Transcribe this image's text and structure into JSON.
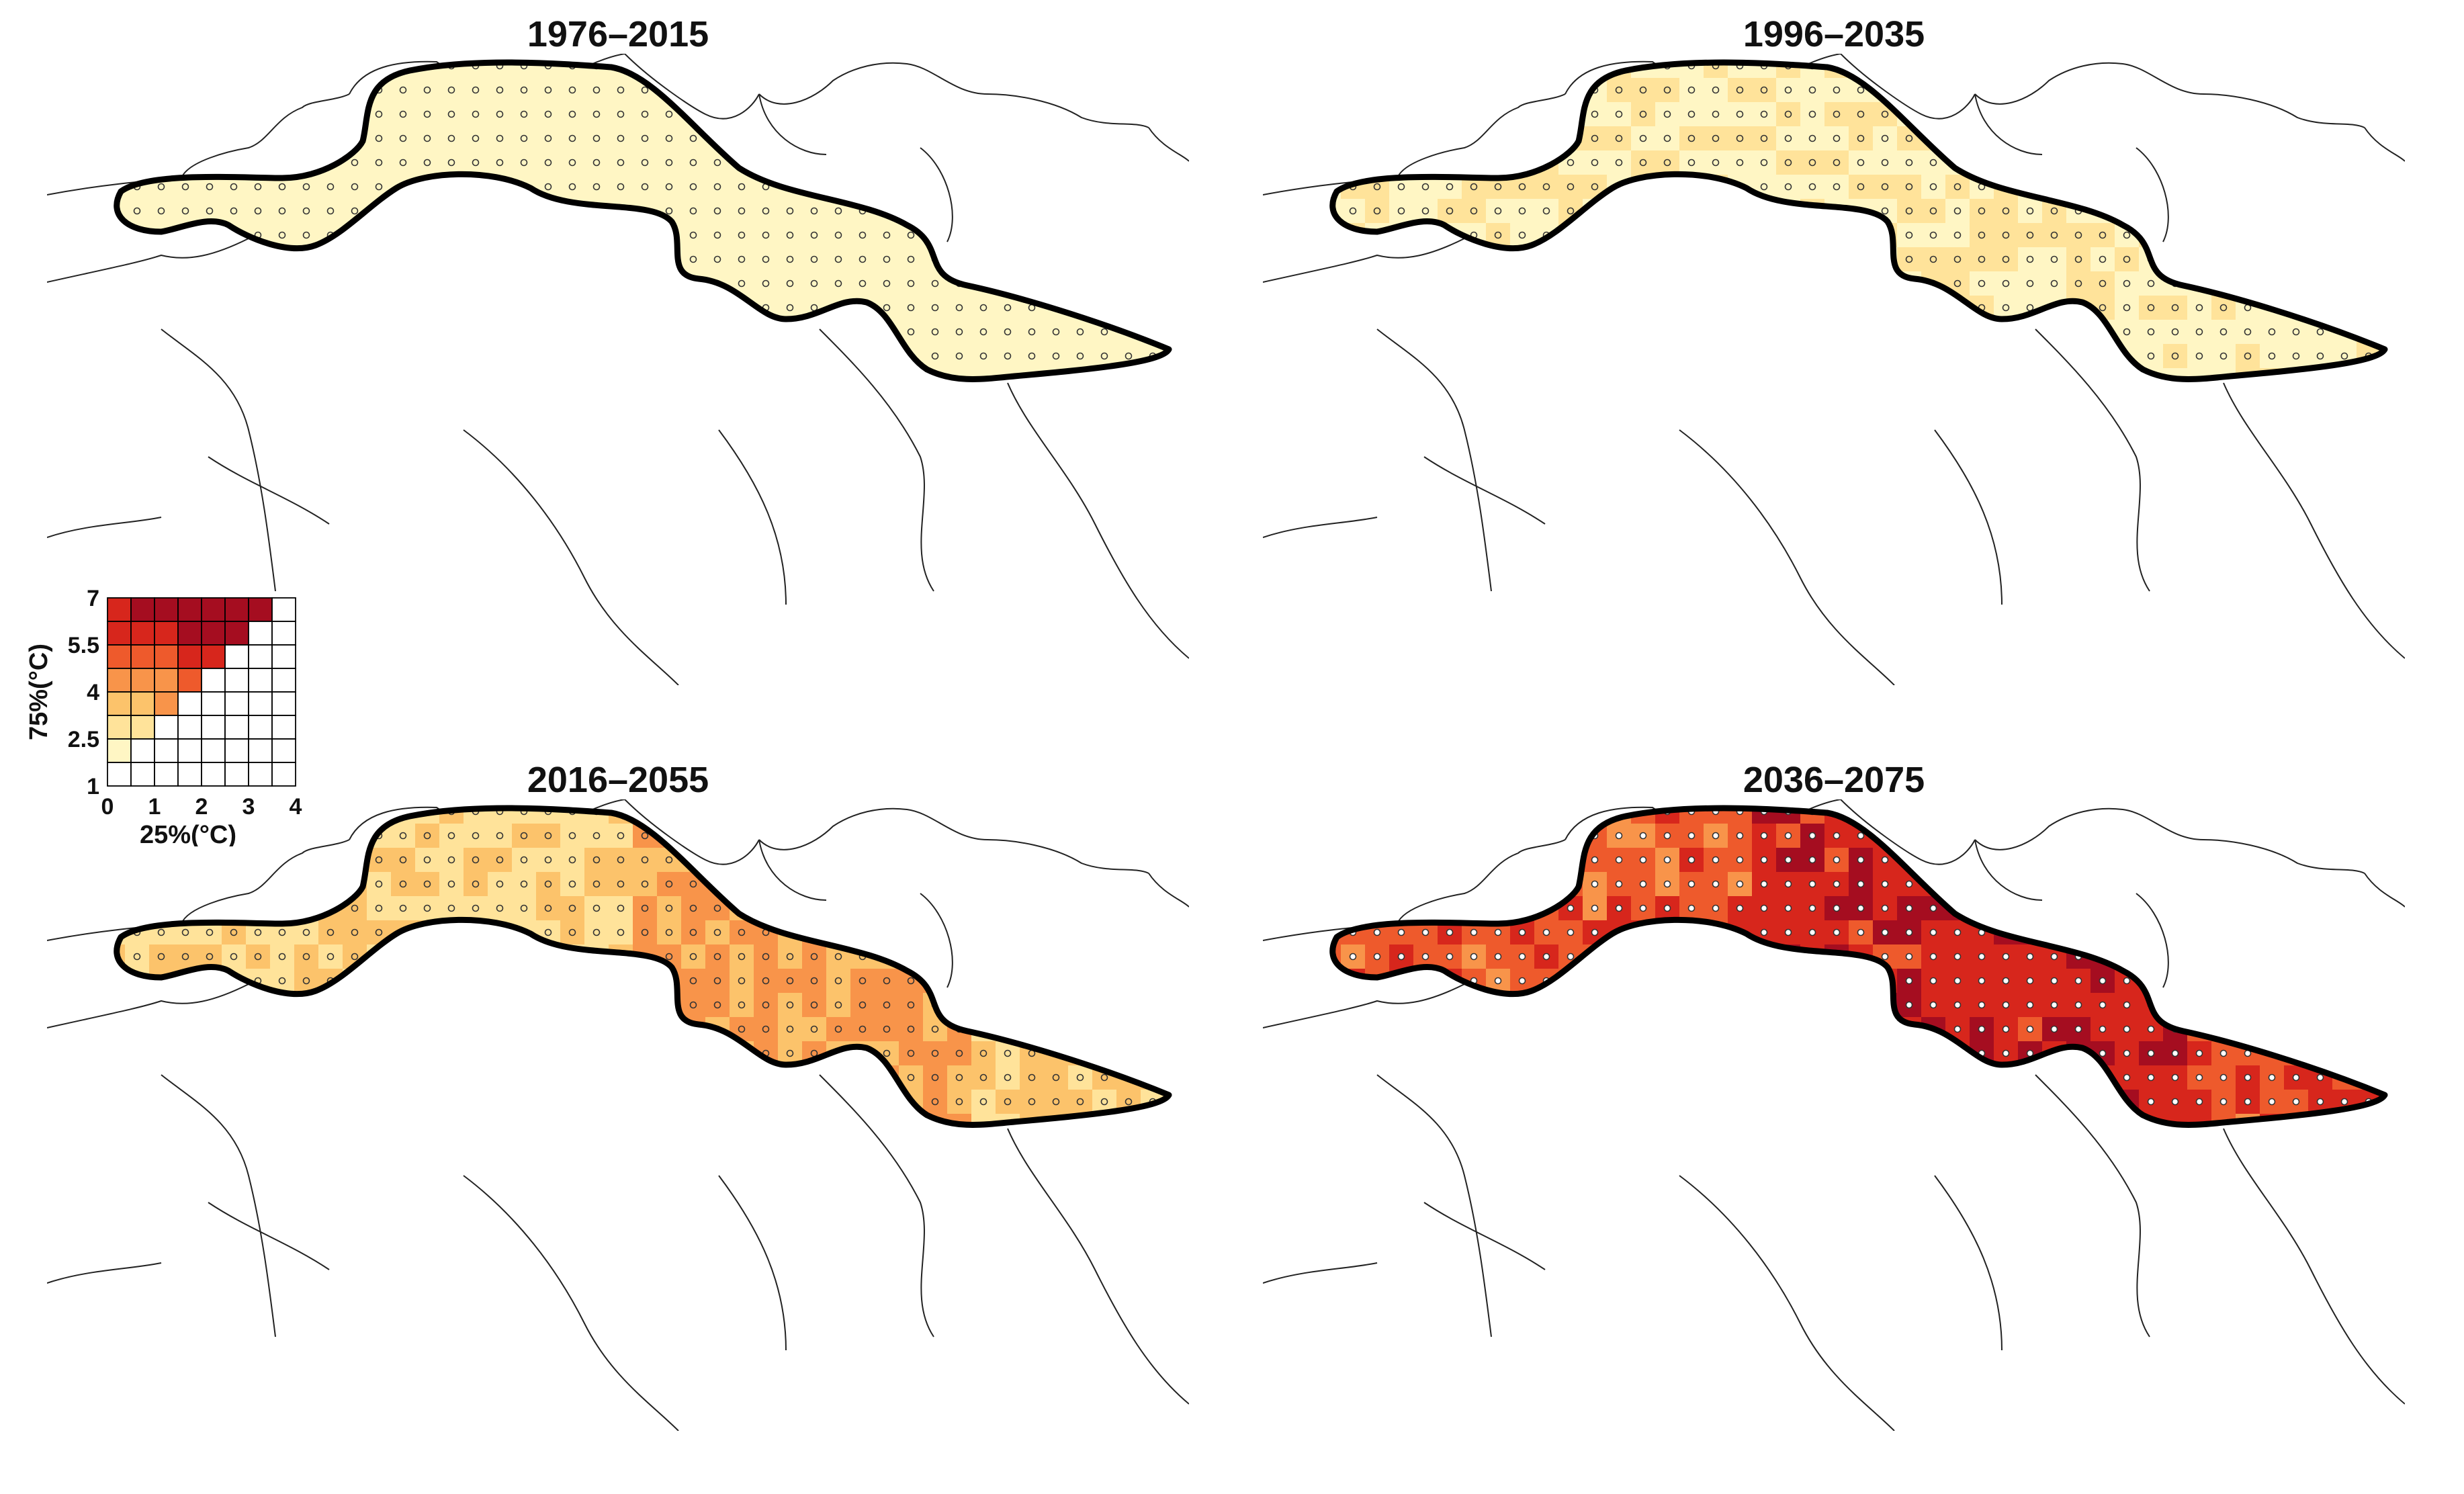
{
  "panels": [
    {
      "title": "1976–2015",
      "intensity": 0
    },
    {
      "title": "1996–2035",
      "intensity": 1
    },
    {
      "title": "2016–2055",
      "intensity": 2
    },
    {
      "title": "2036–2075",
      "intensity": 3
    }
  ],
  "legend": {
    "y_label": "75%(°C)",
    "x_label": "25%(°C)",
    "y_ticks": [
      "7",
      "5.5",
      "4",
      "2.5",
      "1"
    ],
    "x_ticks": [
      "0",
      "1",
      "2",
      "3",
      "4"
    ],
    "colors": [
      "#fff6c4",
      "#ffe39a",
      "#fcc36b",
      "#f8944a",
      "#ee5a2c",
      "#d7261c",
      "#a50d20"
    ]
  },
  "colors": {
    "region_outline": "#000000",
    "border_lines": "#222222",
    "stipple_dot": "#333333"
  }
}
